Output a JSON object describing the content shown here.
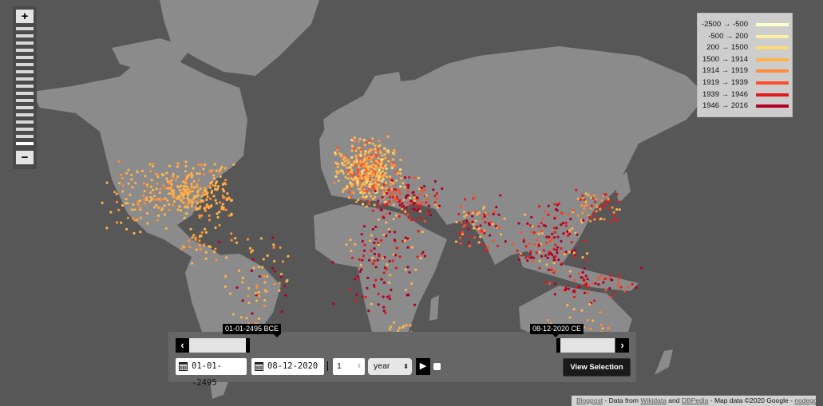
{
  "ocean_color": "#575757",
  "land_color": "#8b8b8b",
  "zoom_control": {
    "plus_label": "+",
    "minus_label": "−",
    "levels": 17,
    "active_level": 16
  },
  "legend": [
    {
      "label": "-2500 → -500",
      "color": "#ffffcc"
    },
    {
      "label": "-500 → 200",
      "color": "#ffeda0"
    },
    {
      "label": "200 → 1500",
      "color": "#fed976"
    },
    {
      "label": "1500 → 1914",
      "color": "#feb24c"
    },
    {
      "label": "1914 → 1919",
      "color": "#fd8d3c"
    },
    {
      "label": "1919 → 1939",
      "color": "#fc4e2a"
    },
    {
      "label": "1939 → 1946",
      "color": "#e31a1c"
    },
    {
      "label": "1946 → 2016",
      "color": "#b10026"
    }
  ],
  "timeline": {
    "start_tooltip": "01-01-2495 BCE",
    "end_tooltip": "08-12-2020 CE",
    "prev_icon": "chevron-left-icon",
    "next_icon": "chevron-right-icon",
    "prev_label": "‹",
    "next_label": "›",
    "start_date": "01-01--2495",
    "end_date": "08-12-2020",
    "step_value": "1",
    "step_unit": "year",
    "play_label": "▶",
    "view_selection_label": "View Selection"
  },
  "footer": {
    "blogpost": "Blogpost",
    "t1": " - Data from ",
    "wikidata": "Wikidata",
    "t2": " and ",
    "dbpedia": "DBPedia",
    "t3": " - Map data ©2020 Google - ",
    "nodegoat": "nodegoat"
  }
}
